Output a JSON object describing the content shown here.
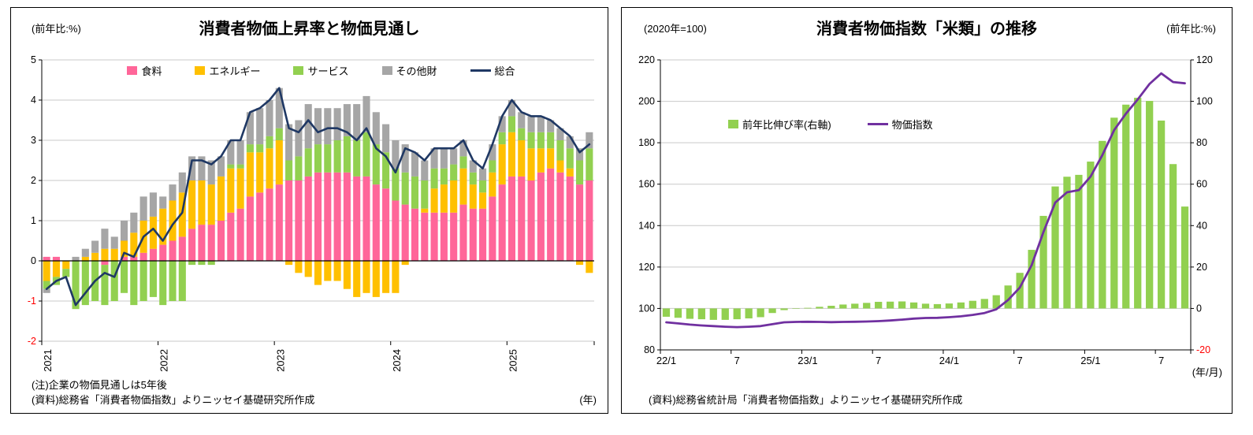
{
  "left_panel": {
    "notes": {
      "line1": "(注)企業の物価見通しは5年後",
      "line2": "(資料)総務省「消費者物価指数」よりニッセイ基礎研究所作成"
    }
  },
  "right_panel": {
    "notes": {
      "line1": "(資料)総務省統計局「消費者物価指数」よりニッセイ基礎研究所作成"
    }
  },
  "chart_data": [
    {
      "type": "bar",
      "subtype": "stacked-bar-with-line",
      "title": "消費者物価上昇率と物価見通し",
      "y_unit": "(前年比:%)",
      "x_unit": "(年)",
      "ylim": [
        -2,
        5
      ],
      "yticks": [
        -2,
        -1,
        0,
        1,
        2,
        3,
        4,
        5
      ],
      "grid": true,
      "legend_position": "top",
      "negative_tick_color": "#FF0000",
      "months": [
        "2021/1",
        "2021/2",
        "2021/3",
        "2021/4",
        "2021/5",
        "2021/6",
        "2021/7",
        "2021/8",
        "2021/9",
        "2021/10",
        "2021/11",
        "2021/12",
        "2022/1",
        "2022/2",
        "2022/3",
        "2022/4",
        "2022/5",
        "2022/6",
        "2022/7",
        "2022/8",
        "2022/9",
        "2022/10",
        "2022/11",
        "2022/12",
        "2023/1",
        "2023/2",
        "2023/3",
        "2023/4",
        "2023/5",
        "2023/6",
        "2023/7",
        "2023/8",
        "2023/9",
        "2023/10",
        "2023/11",
        "2023/12",
        "2024/1",
        "2024/2",
        "2024/3",
        "2024/4",
        "2024/5",
        "2024/6",
        "2024/7",
        "2024/8",
        "2024/9",
        "2024/10",
        "2024/11",
        "2024/12",
        "2025/1",
        "2025/2",
        "2025/3",
        "2025/4",
        "2025/5",
        "2025/6",
        "2025/7",
        "2025/8",
        "2025/9"
      ],
      "x_tick_labels": [
        "2021",
        "2022",
        "2023",
        "2024",
        "2025"
      ],
      "x_tick_positions": [
        0,
        12,
        24,
        36,
        48
      ],
      "series": [
        {
          "name": "食料",
          "type": "bar",
          "color": "#FF6699",
          "values": [
            0.1,
            0.1,
            0.0,
            0.0,
            0.0,
            0.0,
            -0.1,
            0.0,
            0.1,
            0.1,
            0.2,
            0.3,
            0.4,
            0.5,
            0.6,
            0.8,
            0.9,
            0.9,
            1.0,
            1.2,
            1.3,
            1.6,
            1.7,
            1.8,
            1.9,
            2.0,
            2.0,
            2.1,
            2.2,
            2.2,
            2.2,
            2.2,
            2.1,
            2.1,
            1.9,
            1.8,
            1.5,
            1.4,
            1.3,
            1.2,
            1.2,
            1.2,
            1.2,
            1.4,
            1.3,
            1.3,
            1.6,
            1.9,
            2.1,
            2.1,
            2.0,
            2.2,
            2.3,
            2.2,
            2.1,
            1.9,
            2.0
          ]
        },
        {
          "name": "エネルギー",
          "type": "bar",
          "color": "#FFC000",
          "values": [
            -0.5,
            -0.4,
            -0.2,
            0.0,
            0.1,
            0.2,
            0.3,
            0.3,
            0.4,
            0.6,
            0.8,
            0.8,
            0.9,
            1.0,
            1.1,
            1.2,
            1.1,
            1.0,
            1.1,
            1.1,
            1.0,
            1.1,
            1.0,
            1.0,
            1.1,
            -0.1,
            -0.3,
            -0.4,
            -0.6,
            -0.5,
            -0.5,
            -0.7,
            -0.9,
            -0.8,
            -0.9,
            -0.8,
            -0.8,
            -0.1,
            0.0,
            0.1,
            0.6,
            0.7,
            0.8,
            0.9,
            0.6,
            0.4,
            0.6,
            1.0,
            1.1,
            0.9,
            0.8,
            0.6,
            0.5,
            0.3,
            0.2,
            -0.1,
            -0.3
          ]
        },
        {
          "name": "サービス",
          "type": "bar",
          "color": "#92D050",
          "values": [
            -0.2,
            -0.2,
            -0.2,
            -1.2,
            -1.1,
            -1.0,
            -1.0,
            -1.0,
            -0.8,
            -1.1,
            -1.0,
            -0.9,
            -1.1,
            -1.0,
            -1.0,
            -0.1,
            -0.1,
            -0.1,
            0.0,
            0.1,
            0.1,
            0.2,
            0.2,
            0.3,
            0.3,
            0.5,
            0.6,
            0.7,
            0.7,
            0.7,
            0.8,
            0.9,
            0.9,
            1.1,
            1.0,
            0.9,
            0.8,
            0.8,
            0.8,
            0.7,
            0.5,
            0.4,
            0.4,
            0.3,
            0.3,
            0.3,
            0.3,
            0.3,
            0.4,
            0.3,
            0.4,
            0.4,
            0.4,
            0.5,
            0.5,
            0.6,
            0.8
          ]
        },
        {
          "name": "その他財",
          "type": "bar",
          "color": "#A6A6A6",
          "values": [
            -0.1,
            0.0,
            0.0,
            0.1,
            0.2,
            0.3,
            0.5,
            0.3,
            0.5,
            0.5,
            0.6,
            0.6,
            0.3,
            0.4,
            0.5,
            0.6,
            0.6,
            0.6,
            0.5,
            0.6,
            0.6,
            0.8,
            0.9,
            0.9,
            1.0,
            0.9,
            0.9,
            1.1,
            0.9,
            0.9,
            0.8,
            0.8,
            0.9,
            0.9,
            0.8,
            0.7,
            0.7,
            0.7,
            0.6,
            0.5,
            0.5,
            0.5,
            0.4,
            0.4,
            0.3,
            0.3,
            0.4,
            0.4,
            0.4,
            0.4,
            0.4,
            0.4,
            0.3,
            0.3,
            0.3,
            0.3,
            0.4
          ]
        },
        {
          "name": "総合",
          "type": "line",
          "color": "#1F3864",
          "values": [
            -0.7,
            -0.5,
            -0.4,
            -1.1,
            -0.8,
            -0.5,
            -0.3,
            -0.4,
            0.2,
            0.1,
            0.6,
            0.8,
            0.5,
            0.9,
            1.2,
            2.5,
            2.5,
            2.4,
            2.6,
            3.0,
            3.0,
            3.7,
            3.8,
            4.0,
            4.3,
            3.3,
            3.2,
            3.5,
            3.2,
            3.3,
            3.3,
            3.2,
            3.0,
            3.3,
            2.8,
            2.6,
            2.2,
            2.8,
            2.7,
            2.5,
            2.8,
            2.8,
            2.8,
            3.0,
            2.5,
            2.3,
            2.9,
            3.6,
            4.0,
            3.7,
            3.6,
            3.6,
            3.5,
            3.3,
            3.1,
            2.7,
            2.9
          ]
        }
      ]
    },
    {
      "type": "bar",
      "subtype": "bar-with-line-dual-axis",
      "title": "消費者物価指数「米類」の推移",
      "x_unit": "(年/月)",
      "left_axis": {
        "label": "(2020年=100)",
        "lim": [
          80,
          220
        ],
        "ticks": [
          80,
          100,
          120,
          140,
          160,
          180,
          200,
          220
        ]
      },
      "right_axis": {
        "label": "(前年比:%)",
        "lim": [
          -20,
          120
        ],
        "ticks": [
          -20,
          0,
          20,
          40,
          60,
          80,
          100,
          120
        ]
      },
      "grid": true,
      "negative_tick_color": "#FF0000",
      "months": [
        "22/1",
        "22/2",
        "22/3",
        "22/4",
        "22/5",
        "22/6",
        "22/7",
        "22/8",
        "22/9",
        "22/10",
        "22/11",
        "22/12",
        "23/1",
        "23/2",
        "23/3",
        "23/4",
        "23/5",
        "23/6",
        "23/7",
        "23/8",
        "23/9",
        "23/10",
        "23/11",
        "23/12",
        "24/1",
        "24/2",
        "24/3",
        "24/4",
        "24/5",
        "24/6",
        "24/7",
        "24/8",
        "24/9",
        "24/10",
        "24/11",
        "24/12",
        "25/1",
        "25/2",
        "25/3",
        "25/4",
        "25/5",
        "25/6",
        "25/7",
        "25/8",
        "25/9"
      ],
      "x_tick_labels": [
        "22/1",
        "7",
        "23/1",
        "7",
        "24/1",
        "7",
        "25/1",
        "7"
      ],
      "x_tick_positions": [
        0,
        6,
        12,
        18,
        24,
        30,
        36,
        42
      ],
      "bar_series": {
        "name": "前年比伸び率(右軸)",
        "axis": "right",
        "color": "#92D050",
        "values": [
          -4.0,
          -4.5,
          -5.0,
          -5.2,
          -5.5,
          -5.5,
          -5.2,
          -4.8,
          -4.2,
          -2.2,
          -0.8,
          -0.2,
          0.3,
          0.8,
          1.3,
          1.9,
          2.3,
          2.7,
          3.2,
          3.3,
          3.4,
          2.9,
          2.3,
          2.1,
          2.4,
          2.9,
          3.7,
          4.6,
          6.4,
          11.1,
          17.2,
          28.3,
          44.7,
          58.9,
          63.6,
          64.5,
          70.9,
          80.9,
          92.1,
          98.4,
          101.7,
          100.2,
          90.7,
          69.7,
          49.2
        ]
      },
      "line_series": {
        "name": "物価指数",
        "axis": "left",
        "color": "#7030A0",
        "values": [
          93.3,
          92.8,
          92.2,
          91.8,
          91.5,
          91.2,
          91.0,
          91.2,
          91.5,
          92.4,
          93.3,
          93.5,
          93.6,
          93.5,
          93.4,
          93.5,
          93.6,
          93.7,
          93.9,
          94.2,
          94.6,
          95.1,
          95.4,
          95.5,
          95.8,
          96.2,
          96.9,
          97.8,
          99.6,
          104.1,
          110.1,
          120.9,
          136.9,
          151.1,
          156.1,
          157.1,
          163.7,
          174.0,
          186.1,
          194.0,
          200.9,
          208.4,
          213.5,
          209.3,
          208.7
        ]
      }
    }
  ]
}
